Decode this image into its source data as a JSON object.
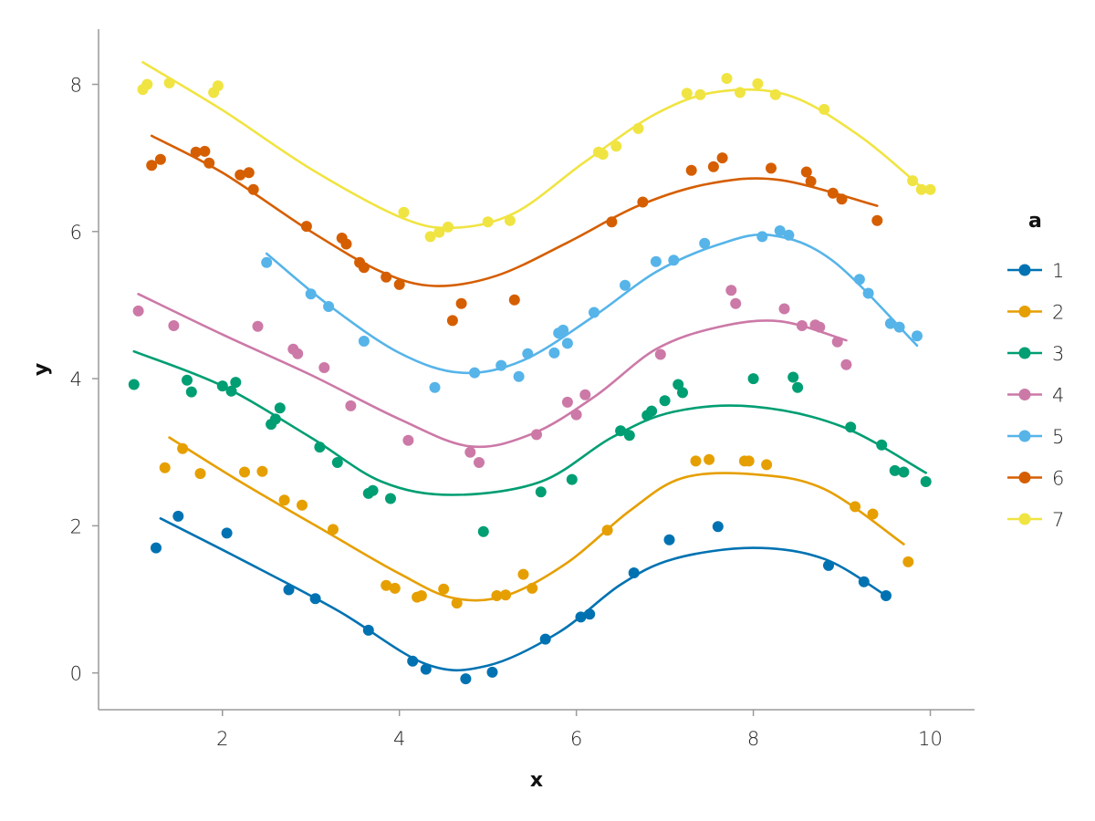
{
  "chart_data": {
    "type": "scatter",
    "xlabel": "x",
    "ylabel": "y",
    "xlim": [
      0.6,
      10.5
    ],
    "ylim": [
      -0.5,
      8.75
    ],
    "xticks": [
      2,
      4,
      6,
      8,
      10
    ],
    "yticks": [
      0,
      2,
      4,
      6,
      8
    ],
    "legend": {
      "title": "a",
      "placement": "right"
    },
    "series": [
      {
        "name": "1",
        "color": "#0072b2",
        "points": [
          [
            1.25,
            1.7
          ],
          [
            1.5,
            2.13
          ],
          [
            2.05,
            1.9
          ],
          [
            2.75,
            1.13
          ],
          [
            3.05,
            1.01
          ],
          [
            3.65,
            0.58
          ],
          [
            4.15,
            0.16
          ],
          [
            4.3,
            0.05
          ],
          [
            4.75,
            -0.08
          ],
          [
            5.05,
            0.01
          ],
          [
            5.65,
            0.46
          ],
          [
            6.05,
            0.76
          ],
          [
            6.15,
            0.8
          ],
          [
            6.65,
            1.36
          ],
          [
            7.05,
            1.81
          ],
          [
            7.6,
            1.99
          ],
          [
            8.85,
            1.46
          ],
          [
            9.25,
            1.24
          ],
          [
            9.5,
            1.05
          ]
        ],
        "fit": [
          [
            1.3,
            2.1
          ],
          [
            2.2,
            1.55
          ],
          [
            3.3,
            0.85
          ],
          [
            4.3,
            0.12
          ],
          [
            5.0,
            0.1
          ],
          [
            5.8,
            0.55
          ],
          [
            6.5,
            1.2
          ],
          [
            7.1,
            1.55
          ],
          [
            8.0,
            1.7
          ],
          [
            8.8,
            1.55
          ],
          [
            9.5,
            1.05
          ]
        ]
      },
      {
        "name": "2",
        "color": "#e69f00",
        "points": [
          [
            1.35,
            2.79
          ],
          [
            1.55,
            3.05
          ],
          [
            1.75,
            2.71
          ],
          [
            2.25,
            2.73
          ],
          [
            2.45,
            2.74
          ],
          [
            2.7,
            2.35
          ],
          [
            2.9,
            2.28
          ],
          [
            3.25,
            1.95
          ],
          [
            3.85,
            1.19
          ],
          [
            3.95,
            1.15
          ],
          [
            4.2,
            1.03
          ],
          [
            4.25,
            1.05
          ],
          [
            4.5,
            1.14
          ],
          [
            4.65,
            0.95
          ],
          [
            5.1,
            1.05
          ],
          [
            5.2,
            1.06
          ],
          [
            5.4,
            1.34
          ],
          [
            5.5,
            1.15
          ],
          [
            6.35,
            1.94
          ],
          [
            7.35,
            2.88
          ],
          [
            7.5,
            2.9
          ],
          [
            7.9,
            2.88
          ],
          [
            7.95,
            2.88
          ],
          [
            8.15,
            2.83
          ],
          [
            9.15,
            2.26
          ],
          [
            9.35,
            2.16
          ],
          [
            9.75,
            1.51
          ]
        ],
        "fit": [
          [
            1.4,
            3.2
          ],
          [
            2.2,
            2.6
          ],
          [
            3.2,
            1.9
          ],
          [
            4.0,
            1.35
          ],
          [
            4.6,
            1.02
          ],
          [
            5.2,
            1.05
          ],
          [
            5.9,
            1.5
          ],
          [
            6.6,
            2.2
          ],
          [
            7.2,
            2.65
          ],
          [
            8.0,
            2.7
          ],
          [
            8.8,
            2.5
          ],
          [
            9.7,
            1.75
          ]
        ]
      },
      {
        "name": "3",
        "color": "#009e73",
        "points": [
          [
            1.0,
            3.92
          ],
          [
            1.6,
            3.98
          ],
          [
            1.65,
            3.82
          ],
          [
            2.0,
            3.9
          ],
          [
            2.1,
            3.83
          ],
          [
            2.15,
            3.95
          ],
          [
            2.55,
            3.38
          ],
          [
            2.6,
            3.45
          ],
          [
            2.65,
            3.6
          ],
          [
            3.1,
            3.07
          ],
          [
            3.3,
            2.86
          ],
          [
            3.65,
            2.44
          ],
          [
            3.7,
            2.48
          ],
          [
            3.9,
            2.37
          ],
          [
            4.95,
            1.92
          ],
          [
            5.6,
            2.46
          ],
          [
            5.95,
            2.63
          ],
          [
            6.5,
            3.29
          ],
          [
            6.6,
            3.23
          ],
          [
            6.8,
            3.5
          ],
          [
            6.85,
            3.56
          ],
          [
            7.0,
            3.7
          ],
          [
            7.15,
            3.92
          ],
          [
            7.2,
            3.81
          ],
          [
            8.0,
            4.0
          ],
          [
            8.45,
            4.02
          ],
          [
            8.5,
            3.88
          ],
          [
            9.1,
            3.34
          ],
          [
            9.45,
            3.1
          ],
          [
            9.6,
            2.75
          ],
          [
            9.7,
            2.73
          ],
          [
            9.95,
            2.6
          ]
        ],
        "fit": [
          [
            1.0,
            4.37
          ],
          [
            2.0,
            3.9
          ],
          [
            3.0,
            3.2
          ],
          [
            3.8,
            2.6
          ],
          [
            4.6,
            2.42
          ],
          [
            5.6,
            2.6
          ],
          [
            6.4,
            3.2
          ],
          [
            7.1,
            3.55
          ],
          [
            8.0,
            3.62
          ],
          [
            9.0,
            3.35
          ],
          [
            9.95,
            2.72
          ]
        ]
      },
      {
        "name": "4",
        "color": "#cc79a7",
        "points": [
          [
            1.05,
            4.92
          ],
          [
            1.45,
            4.72
          ],
          [
            2.4,
            4.71
          ],
          [
            2.8,
            4.4
          ],
          [
            2.85,
            4.34
          ],
          [
            3.15,
            4.15
          ],
          [
            3.45,
            3.63
          ],
          [
            4.1,
            3.16
          ],
          [
            4.8,
            3.0
          ],
          [
            4.9,
            2.86
          ],
          [
            5.55,
            3.24
          ],
          [
            5.9,
            3.68
          ],
          [
            6.0,
            3.51
          ],
          [
            6.1,
            3.78
          ],
          [
            6.95,
            4.33
          ],
          [
            7.75,
            5.2
          ],
          [
            7.8,
            5.02
          ],
          [
            8.35,
            4.95
          ],
          [
            8.55,
            4.72
          ],
          [
            8.7,
            4.73
          ],
          [
            8.75,
            4.7
          ],
          [
            8.95,
            4.5
          ],
          [
            9.05,
            4.19
          ]
        ],
        "fit": [
          [
            1.05,
            5.15
          ],
          [
            2.0,
            4.6
          ],
          [
            3.0,
            4.05
          ],
          [
            4.0,
            3.45
          ],
          [
            4.8,
            3.08
          ],
          [
            5.5,
            3.25
          ],
          [
            6.2,
            3.75
          ],
          [
            6.9,
            4.4
          ],
          [
            7.6,
            4.7
          ],
          [
            8.3,
            4.78
          ],
          [
            9.05,
            4.52
          ]
        ]
      },
      {
        "name": "5",
        "color": "#56b4e9",
        "points": [
          [
            2.5,
            5.58
          ],
          [
            3.0,
            5.15
          ],
          [
            3.2,
            4.98
          ],
          [
            3.6,
            4.51
          ],
          [
            4.4,
            3.88
          ],
          [
            4.85,
            4.08
          ],
          [
            5.15,
            4.18
          ],
          [
            5.35,
            4.03
          ],
          [
            5.45,
            4.34
          ],
          [
            5.75,
            4.35
          ],
          [
            5.8,
            4.62
          ],
          [
            5.85,
            4.66
          ],
          [
            5.9,
            4.48
          ],
          [
            6.2,
            4.9
          ],
          [
            6.55,
            5.27
          ],
          [
            6.9,
            5.59
          ],
          [
            7.1,
            5.61
          ],
          [
            7.45,
            5.84
          ],
          [
            8.1,
            5.93
          ],
          [
            8.3,
            6.01
          ],
          [
            8.4,
            5.95
          ],
          [
            9.2,
            5.35
          ],
          [
            9.3,
            5.16
          ],
          [
            9.55,
            4.75
          ],
          [
            9.65,
            4.7
          ],
          [
            9.85,
            4.58
          ]
        ],
        "fit": [
          [
            2.5,
            5.7
          ],
          [
            3.2,
            5.0
          ],
          [
            4.0,
            4.35
          ],
          [
            4.7,
            4.08
          ],
          [
            5.4,
            4.25
          ],
          [
            6.2,
            4.85
          ],
          [
            6.9,
            5.45
          ],
          [
            7.6,
            5.82
          ],
          [
            8.2,
            5.95
          ],
          [
            8.9,
            5.6
          ],
          [
            9.85,
            4.45
          ]
        ]
      },
      {
        "name": "6",
        "color": "#d55e00",
        "points": [
          [
            1.2,
            6.9
          ],
          [
            1.3,
            6.98
          ],
          [
            1.7,
            7.08
          ],
          [
            1.8,
            7.09
          ],
          [
            1.85,
            6.93
          ],
          [
            2.2,
            6.77
          ],
          [
            2.3,
            6.8
          ],
          [
            2.35,
            6.57
          ],
          [
            2.95,
            6.07
          ],
          [
            3.35,
            5.91
          ],
          [
            3.4,
            5.83
          ],
          [
            3.55,
            5.58
          ],
          [
            3.6,
            5.51
          ],
          [
            3.85,
            5.38
          ],
          [
            4.0,
            5.28
          ],
          [
            4.6,
            4.79
          ],
          [
            4.7,
            5.02
          ],
          [
            5.3,
            5.07
          ],
          [
            6.4,
            6.13
          ],
          [
            6.75,
            6.4
          ],
          [
            7.3,
            6.83
          ],
          [
            7.55,
            6.88
          ],
          [
            7.65,
            7.0
          ],
          [
            8.2,
            6.86
          ],
          [
            8.6,
            6.81
          ],
          [
            8.65,
            6.68
          ],
          [
            8.9,
            6.52
          ],
          [
            9.0,
            6.44
          ],
          [
            9.4,
            6.15
          ]
        ],
        "fit": [
          [
            1.2,
            7.3
          ],
          [
            2.0,
            6.8
          ],
          [
            3.0,
            6.0
          ],
          [
            3.8,
            5.45
          ],
          [
            4.4,
            5.26
          ],
          [
            5.1,
            5.4
          ],
          [
            5.9,
            5.85
          ],
          [
            6.7,
            6.35
          ],
          [
            7.5,
            6.65
          ],
          [
            8.3,
            6.7
          ],
          [
            9.4,
            6.35
          ]
        ]
      },
      {
        "name": "7",
        "color": "#f0e442",
        "points": [
          [
            1.1,
            7.93
          ],
          [
            1.15,
            8.0
          ],
          [
            1.4,
            8.02
          ],
          [
            1.9,
            7.89
          ],
          [
            1.95,
            7.98
          ],
          [
            4.05,
            6.26
          ],
          [
            4.35,
            5.93
          ],
          [
            4.45,
            5.99
          ],
          [
            4.55,
            6.06
          ],
          [
            5.0,
            6.13
          ],
          [
            5.25,
            6.15
          ],
          [
            6.25,
            7.08
          ],
          [
            6.3,
            7.05
          ],
          [
            6.45,
            7.16
          ],
          [
            6.7,
            7.4
          ],
          [
            7.25,
            7.88
          ],
          [
            7.4,
            7.86
          ],
          [
            7.7,
            8.08
          ],
          [
            7.85,
            7.89
          ],
          [
            8.05,
            8.01
          ],
          [
            8.25,
            7.86
          ],
          [
            8.8,
            7.66
          ],
          [
            9.8,
            6.69
          ],
          [
            9.9,
            6.57
          ],
          [
            10.0,
            6.57
          ]
        ],
        "fit": [
          [
            1.1,
            8.3
          ],
          [
            2.0,
            7.65
          ],
          [
            3.0,
            6.85
          ],
          [
            4.0,
            6.2
          ],
          [
            4.6,
            6.05
          ],
          [
            5.3,
            6.25
          ],
          [
            6.1,
            6.95
          ],
          [
            6.9,
            7.6
          ],
          [
            7.6,
            7.9
          ],
          [
            8.4,
            7.85
          ],
          [
            9.2,
            7.3
          ],
          [
            9.9,
            6.6
          ]
        ]
      }
    ]
  }
}
